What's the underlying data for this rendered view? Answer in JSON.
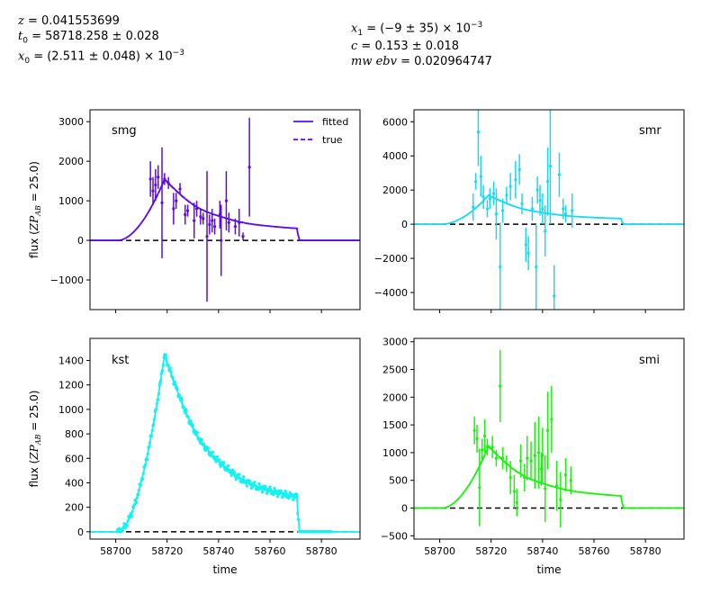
{
  "header": {
    "left": [
      {
        "var": "z",
        "rest": " = 0.041553699"
      },
      {
        "var": "t",
        "sub": "0",
        "rest": " = 58718.258 ± 0.028"
      },
      {
        "var": "x",
        "sub": "0",
        "rest": " = (2.511 ± 0.048) × 10",
        "sup": "−3"
      }
    ],
    "right": [
      {
        "var": "x",
        "sub": "1",
        "rest": " = (−9 ± 35) × 10",
        "sup": "−3"
      },
      {
        "var": "c",
        "rest": " = 0.153 ± 0.018"
      },
      {
        "var": "mw ebv",
        "rest": " = 0.020964747"
      }
    ]
  },
  "chart_data": [
    {
      "type": "line",
      "panel": "smg",
      "color": "#5a0be6",
      "xlim": [
        58690,
        58795
      ],
      "ylim": [
        -1750,
        3300
      ],
      "yticks": [
        -1000,
        0,
        1000,
        2000,
        3000
      ],
      "xticks": [
        58700,
        58720,
        58740,
        58760,
        58780
      ],
      "ylabel": "flux (ZP_AB = 25.0)",
      "xlabel": "",
      "show_xticklabels": false,
      "legend": {
        "placement": "top-right",
        "entries": [
          "fitted",
          "true"
        ]
      },
      "model_peak": 1550,
      "model_tail": 120,
      "points": [
        [
          58713.5,
          1550,
          450
        ],
        [
          58714.5,
          1250,
          350
        ],
        [
          58715.5,
          1400,
          400
        ],
        [
          58716.5,
          1600,
          300
        ],
        [
          58718,
          950,
          1400
        ],
        [
          58719,
          1550,
          150
        ],
        [
          58720.5,
          1450,
          150
        ],
        [
          58722.5,
          800,
          400
        ],
        [
          58723.5,
          1000,
          200
        ],
        [
          58725,
          1300,
          150
        ],
        [
          58727,
          650,
          250
        ],
        [
          58728,
          750,
          150
        ],
        [
          58730.5,
          500,
          450
        ],
        [
          58731.5,
          800,
          200
        ],
        [
          58733,
          600,
          200
        ],
        [
          58734,
          550,
          150
        ],
        [
          58735.5,
          100,
          1650
        ],
        [
          58736.5,
          400,
          250
        ],
        [
          58737.5,
          500,
          300
        ],
        [
          58738.5,
          350,
          200
        ],
        [
          58740.5,
          650,
          350
        ],
        [
          58741,
          0,
          900
        ],
        [
          58743,
          1000,
          750
        ],
        [
          58744,
          450,
          250
        ],
        [
          58746.5,
          350,
          200
        ],
        [
          58748,
          450,
          350
        ],
        [
          58749.5,
          100,
          100
        ],
        [
          58752,
          1850,
          1250
        ]
      ]
    },
    {
      "type": "line",
      "panel": "smr",
      "color": "#18d9f2",
      "xlim": [
        58690,
        58795
      ],
      "ylim": [
        -5000,
        6700
      ],
      "yticks": [
        -4000,
        -2000,
        0,
        2000,
        4000,
        6000
      ],
      "xticks": [
        58700,
        58720,
        58740,
        58760,
        58780
      ],
      "ylabel": "",
      "xlabel": "",
      "show_xticklabels": false,
      "model_peak": 1700,
      "model_tail": 220,
      "points": [
        [
          58713,
          1000,
          800
        ],
        [
          58714,
          2500,
          500
        ],
        [
          58715,
          5400,
          2000
        ],
        [
          58716,
          2800,
          1200
        ],
        [
          58717,
          1600,
          700
        ],
        [
          58718.5,
          900,
          500
        ],
        [
          58719.5,
          1500,
          600
        ],
        [
          58721,
          1800,
          700
        ],
        [
          58722,
          600,
          1500
        ],
        [
          58723.5,
          -2500,
          2600
        ],
        [
          58724.5,
          800,
          700
        ],
        [
          58726,
          1700,
          500
        ],
        [
          58727.5,
          2200,
          800
        ],
        [
          58729.5,
          2600,
          1100
        ],
        [
          58731,
          3200,
          900
        ],
        [
          58732,
          1200,
          600
        ],
        [
          58733.5,
          -1200,
          1000
        ],
        [
          58734.5,
          -1700,
          1000
        ],
        [
          58736,
          900,
          700
        ],
        [
          58737.5,
          -2500,
          2500
        ],
        [
          58738,
          2000,
          800
        ],
        [
          58739,
          1400,
          900
        ],
        [
          58740,
          900,
          900
        ],
        [
          58741,
          -400,
          1500
        ],
        [
          58742,
          2500,
          2000
        ],
        [
          58743,
          3400,
          3400
        ],
        [
          58744.5,
          -4200,
          1800
        ],
        [
          58746.5,
          2900,
          1300
        ],
        [
          58748,
          900,
          600
        ],
        [
          58749,
          600,
          500
        ],
        [
          58751.5,
          800,
          1000
        ]
      ]
    },
    {
      "type": "line",
      "panel": "kst",
      "color": "#14f2f2",
      "xlim": [
        58690,
        58795
      ],
      "ylim": [
        -60,
        1580
      ],
      "yticks": [
        0,
        200,
        400,
        600,
        800,
        1000,
        1200,
        1400
      ],
      "xticks": [
        58700,
        58720,
        58740,
        58760,
        58780
      ],
      "ylabel": "flux (ZP_AB = 25.0)",
      "xlabel": "time",
      "show_xticklabels": true,
      "model_peak": 1450,
      "model_tail": 195,
      "points": []
    },
    {
      "type": "line",
      "panel": "smi",
      "color": "#18f20c",
      "xlim": [
        58690,
        58795
      ],
      "ylim": [
        -560,
        3060
      ],
      "yticks": [
        -500,
        0,
        500,
        1000,
        1500,
        2000,
        2500,
        3000
      ],
      "xticks": [
        58700,
        58720,
        58740,
        58760,
        58780
      ],
      "ylabel": "",
      "xlabel": "time",
      "show_xticklabels": true,
      "model_peak": 1120,
      "model_tail": 220,
      "points": [
        [
          58713.5,
          1400,
          250
        ],
        [
          58714.5,
          1250,
          250
        ],
        [
          58715.5,
          370,
          700
        ],
        [
          58716.5,
          1050,
          200
        ],
        [
          58717.5,
          1300,
          300
        ],
        [
          58718.5,
          1100,
          150
        ],
        [
          58720.5,
          1100,
          200
        ],
        [
          58722,
          900,
          150
        ],
        [
          58723.5,
          2200,
          650
        ],
        [
          58724.5,
          900,
          200
        ],
        [
          58726,
          800,
          150
        ],
        [
          58727.5,
          550,
          300
        ],
        [
          58729,
          300,
          300
        ],
        [
          58730,
          100,
          250
        ],
        [
          58731.5,
          850,
          300
        ],
        [
          58733,
          550,
          250
        ],
        [
          58734,
          900,
          400
        ],
        [
          58735.5,
          850,
          350
        ],
        [
          58737,
          950,
          600
        ],
        [
          58738.5,
          1000,
          650
        ],
        [
          58739.5,
          700,
          300
        ],
        [
          58740,
          950,
          500
        ],
        [
          58741,
          350,
          600
        ],
        [
          58742,
          1400,
          700
        ],
        [
          58743.5,
          1600,
          600
        ],
        [
          58745.5,
          400,
          450
        ],
        [
          58747,
          150,
          500
        ],
        [
          58749,
          600,
          300
        ],
        [
          58751,
          500,
          250
        ]
      ]
    }
  ],
  "zero_line_style": "dashed",
  "zero_line_color": "#000000"
}
